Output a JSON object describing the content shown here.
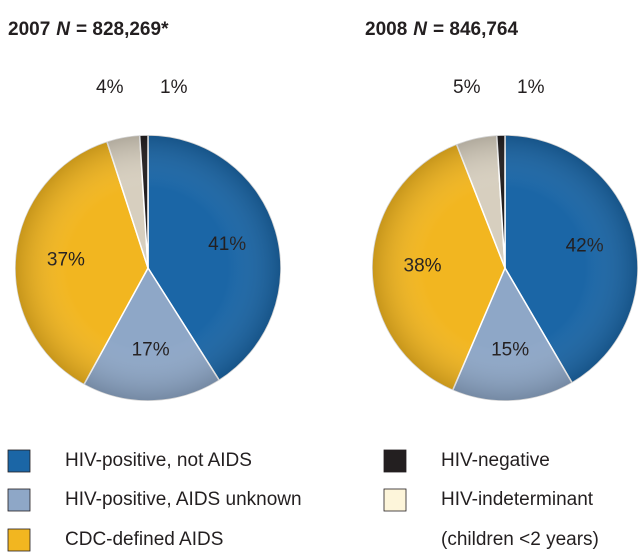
{
  "chart_data": [
    {
      "type": "pie",
      "title_parts": [
        "2007",
        "N",
        "= 828,269*"
      ],
      "values": [
        41,
        17,
        37,
        4,
        1
      ],
      "value_labels": [
        "41%",
        "17%",
        "37%",
        "4%",
        "1%"
      ],
      "colors": [
        "#1b66a6",
        "#8ea7c7",
        "#f2b620",
        "#d7cfbf",
        "#231f20"
      ]
    },
    {
      "type": "pie",
      "title_parts": [
        "2008",
        "N",
        "= 846,764"
      ],
      "values": [
        42,
        15,
        38,
        5,
        1
      ],
      "value_labels": [
        "42%",
        "15%",
        "38%",
        "5%",
        "1%"
      ],
      "colors": [
        "#1b66a6",
        "#8ea7c7",
        "#f2b620",
        "#d7cfbf",
        "#231f20"
      ]
    }
  ],
  "legend": {
    "items": [
      {
        "name": "HIV-positive, not AIDS",
        "color": "#1b66a6"
      },
      {
        "name": "HIV-positive, AIDS unknown",
        "color": "#8ea7c7"
      },
      {
        "name": "CDC-defined AIDS",
        "color": "#f2b620"
      },
      {
        "name": "HIV-negative",
        "color": "#231f20"
      },
      {
        "name": "HIV-indeterminant",
        "color": "#fdf5da"
      }
    ],
    "note": "(children <2 years)"
  }
}
